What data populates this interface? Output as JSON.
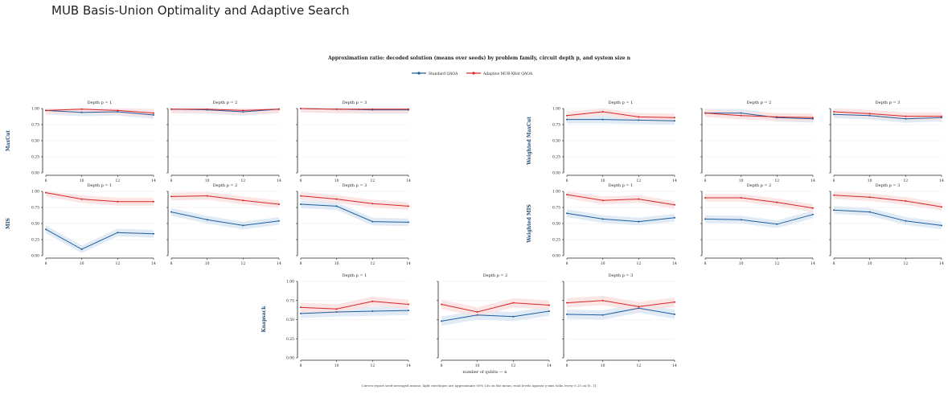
{
  "page_title": "MUB Basis-Union Optimality and Adaptive Search",
  "colors": {
    "standard": "#1f5f9e",
    "adaptive": "#d62728",
    "standard_band": "#dce8f5",
    "adaptive_band": "#fbe0e0",
    "row_label": "#1f4e79",
    "axis": "#222222"
  },
  "chart_data": {
    "type": "line",
    "title": "Approximation ratio: decoded solution (means over seeds) by problem family, circuit depth p, and system size n",
    "xlabel": "number of qubits — n",
    "footnote": "Curves report seed-averaged means; light envelopes are approximate 95% CIs on the mean; read levels against y-axis ticks every 0.25 on [0, 1].",
    "legend": [
      "Standard QAOA",
      "Adaptive MUB-XRot QAOA"
    ],
    "legend_placement": "top-center",
    "x": [
      8,
      10,
      12,
      14
    ],
    "x_ticks": [
      "8",
      "10",
      "12",
      "14"
    ],
    "ylim": [
      0,
      1
    ],
    "y_ticks": [
      "0.00",
      "0.25",
      "0.50",
      "0.75",
      "1.00"
    ],
    "panel_titles": [
      "Depth p = 1",
      "Depth p = 2",
      "Depth p = 3"
    ],
    "families": [
      {
        "name": "MaxCut",
        "panels": [
          {
            "standard": [
              0.97,
              0.94,
              0.95,
              0.9
            ],
            "adaptive": [
              0.97,
              0.99,
              0.97,
              0.93
            ]
          },
          {
            "standard": [
              0.99,
              0.98,
              0.95,
              0.99
            ],
            "adaptive": [
              0.99,
              0.99,
              0.97,
              0.99
            ]
          },
          {
            "standard": [
              1.0,
              0.99,
              0.98,
              0.98
            ],
            "adaptive": [
              1.0,
              0.99,
              0.99,
              0.99
            ]
          }
        ]
      },
      {
        "name": "Weighted MaxCut",
        "panels": [
          {
            "standard": [
              0.83,
              0.83,
              0.82,
              0.81
            ],
            "adaptive": [
              0.89,
              0.95,
              0.87,
              0.86
            ]
          },
          {
            "standard": [
              0.93,
              0.93,
              0.86,
              0.84
            ],
            "adaptive": [
              0.93,
              0.89,
              0.87,
              0.86
            ]
          },
          {
            "standard": [
              0.91,
              0.89,
              0.84,
              0.86
            ],
            "adaptive": [
              0.95,
              0.92,
              0.88,
              0.88
            ]
          }
        ]
      },
      {
        "name": "MIS",
        "panels": [
          {
            "standard": [
              0.41,
              0.1,
              0.36,
              0.34
            ],
            "adaptive": [
              0.98,
              0.88,
              0.84,
              0.84
            ]
          },
          {
            "standard": [
              0.68,
              0.56,
              0.47,
              0.54
            ],
            "adaptive": [
              0.92,
              0.93,
              0.86,
              0.8
            ]
          },
          {
            "standard": [
              0.8,
              0.77,
              0.53,
              0.52
            ],
            "adaptive": [
              0.93,
              0.88,
              0.81,
              0.77
            ]
          }
        ]
      },
      {
        "name": "Weighted MIS",
        "panels": [
          {
            "standard": [
              0.66,
              0.57,
              0.53,
              0.59
            ],
            "adaptive": [
              0.95,
              0.86,
              0.88,
              0.79
            ]
          },
          {
            "standard": [
              0.57,
              0.56,
              0.49,
              0.64
            ],
            "adaptive": [
              0.9,
              0.9,
              0.83,
              0.74
            ]
          },
          {
            "standard": [
              0.71,
              0.68,
              0.54,
              0.47
            ],
            "adaptive": [
              0.94,
              0.91,
              0.85,
              0.76
            ]
          }
        ]
      },
      {
        "name": "Knapsack",
        "panels": [
          {
            "standard": [
              0.58,
              0.6,
              0.61,
              0.62
            ],
            "adaptive": [
              0.66,
              0.64,
              0.74,
              0.7
            ]
          },
          {
            "standard": [
              0.48,
              0.56,
              0.54,
              0.61
            ],
            "adaptive": [
              0.7,
              0.6,
              0.72,
              0.69
            ]
          },
          {
            "standard": [
              0.57,
              0.56,
              0.65,
              0.57
            ],
            "adaptive": [
              0.72,
              0.75,
              0.67,
              0.73
            ]
          }
        ]
      }
    ]
  }
}
